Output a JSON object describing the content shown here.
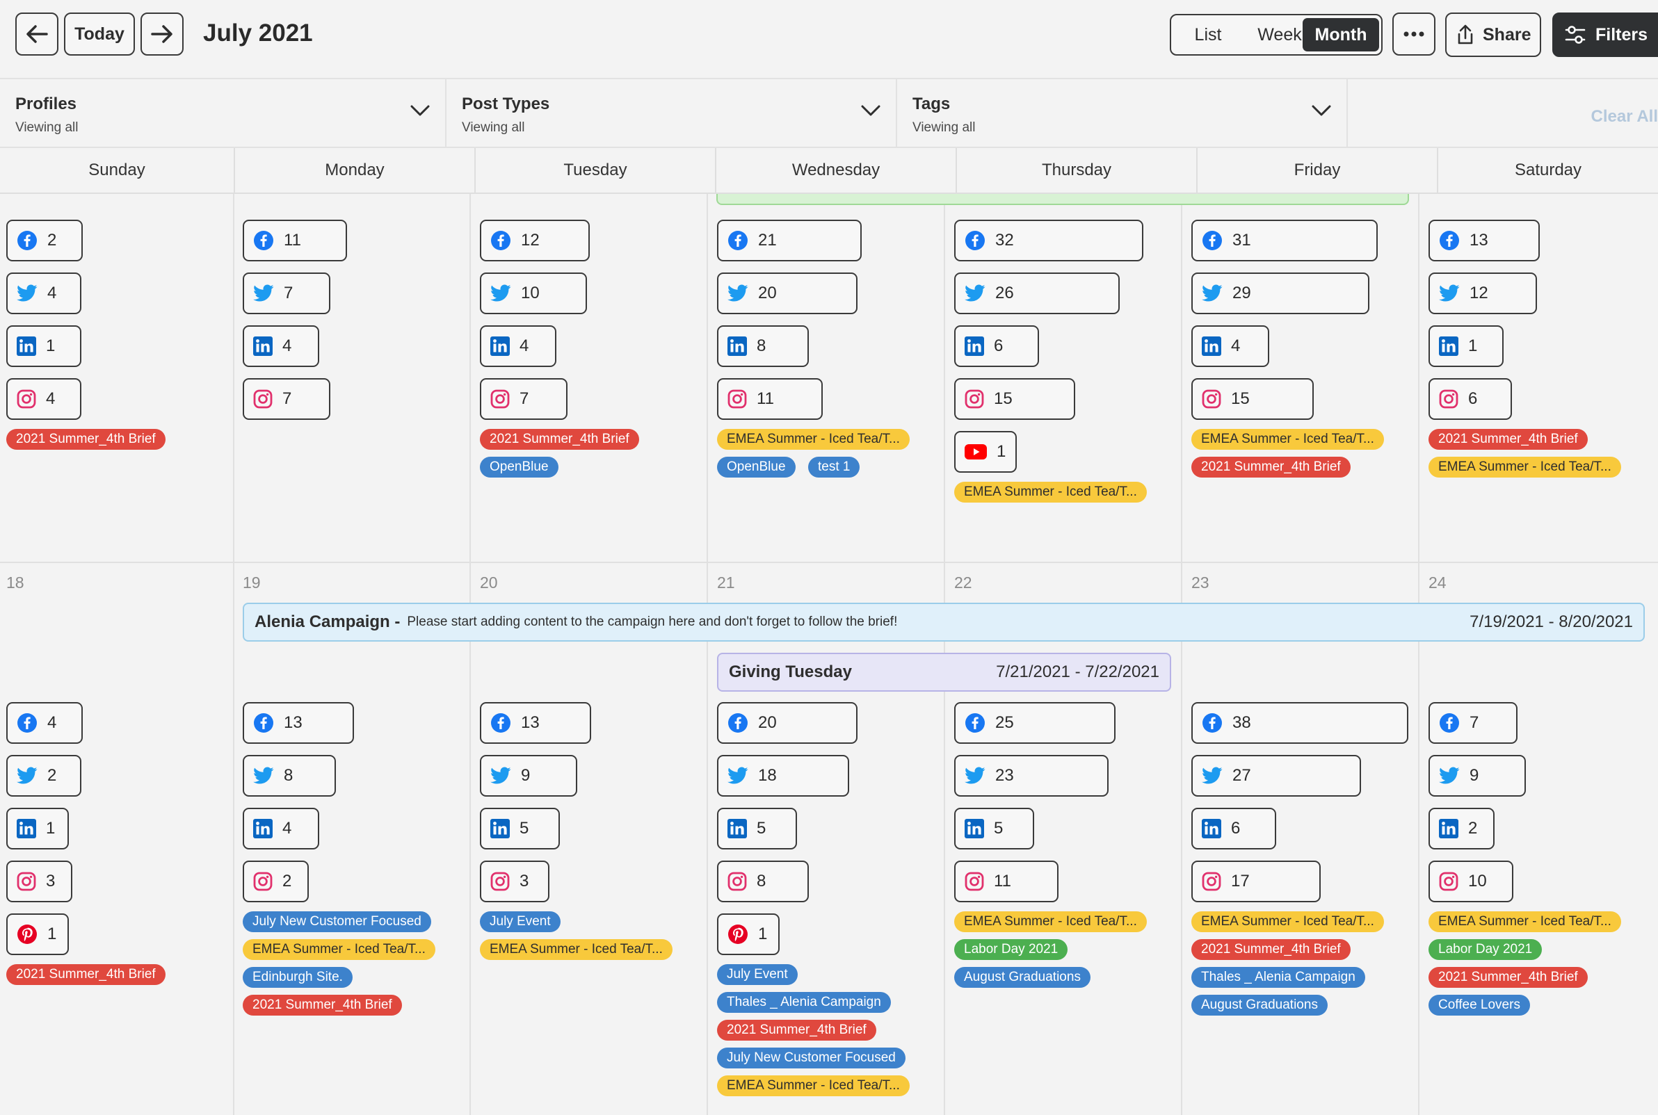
{
  "header": {
    "today_label": "Today",
    "month_title": "July 2021",
    "views": [
      "List",
      "Week",
      "Month"
    ],
    "active_view": "Month",
    "more_label": "•••",
    "share_label": "Share",
    "filters_label": "Filters"
  },
  "filters": {
    "profiles": {
      "label": "Profiles",
      "value": "Viewing all"
    },
    "post_types": {
      "label": "Post Types",
      "value": "Viewing all"
    },
    "tags": {
      "label": "Tags",
      "value": "Viewing all"
    },
    "clear_all": "Clear All"
  },
  "days": [
    "Sunday",
    "Monday",
    "Tuesday",
    "Wednesday",
    "Thursday",
    "Friday",
    "Saturday"
  ],
  "week2": {
    "dates": [
      "18",
      "19",
      "20",
      "21",
      "22",
      "23",
      "24"
    ]
  },
  "campaigns": {
    "alenia": {
      "name": "Alenia Campaign -",
      "desc": "Please start adding content to the campaign here and don't forget to follow the brief!",
      "dates": "7/19/2021 - 8/20/2021"
    },
    "giving": {
      "name": "Giving Tuesday",
      "dates": "7/21/2021 - 7/22/2021"
    }
  },
  "colors": {
    "facebook": "#1877f2",
    "twitter": "#1d9bf0",
    "linkedin": "#0a66c2",
    "instagram": "#e1306c",
    "youtube": "#ff0000",
    "pinterest": "#e60023",
    "tag_red": "#e0483e",
    "tag_yellow": "#f8c93c",
    "tag_blue": "#3d82cc",
    "tag_green": "#4caf50"
  },
  "week1": [
    {
      "posts": [
        [
          "facebook",
          "2"
        ],
        [
          "twitter",
          "4"
        ],
        [
          "linkedin",
          "1"
        ],
        [
          "instagram",
          "4"
        ]
      ],
      "tags": [
        [
          "red",
          "2021 Summer_4th Brief"
        ]
      ]
    },
    {
      "posts": [
        [
          "facebook",
          "11"
        ],
        [
          "twitter",
          "7"
        ],
        [
          "linkedin",
          "4"
        ],
        [
          "instagram",
          "7"
        ]
      ],
      "tags": []
    },
    {
      "posts": [
        [
          "facebook",
          "12"
        ],
        [
          "twitter",
          "10"
        ],
        [
          "linkedin",
          "4"
        ],
        [
          "instagram",
          "7"
        ]
      ],
      "tags": [
        [
          "red",
          "2021 Summer_4th Brief"
        ],
        [
          "blue",
          "OpenBlue"
        ]
      ]
    },
    {
      "posts": [
        [
          "facebook",
          "21"
        ],
        [
          "twitter",
          "20"
        ],
        [
          "linkedin",
          "8"
        ],
        [
          "instagram",
          "11"
        ]
      ],
      "tags": [
        [
          "yellow",
          "EMEA Summer - Iced Tea/T..."
        ],
        [
          "blue",
          "OpenBlue"
        ],
        [
          "blue",
          "test 1"
        ]
      ]
    },
    {
      "posts": [
        [
          "facebook",
          "32"
        ],
        [
          "twitter",
          "26"
        ],
        [
          "linkedin",
          "6"
        ],
        [
          "instagram",
          "15"
        ],
        [
          "youtube",
          "1"
        ]
      ],
      "tags": [
        [
          "yellow",
          "EMEA Summer - Iced Tea/T..."
        ]
      ]
    },
    {
      "posts": [
        [
          "facebook",
          "31"
        ],
        [
          "twitter",
          "29"
        ],
        [
          "linkedin",
          "4"
        ],
        [
          "instagram",
          "15"
        ]
      ],
      "tags": [
        [
          "yellow",
          "EMEA Summer - Iced Tea/T..."
        ],
        [
          "red",
          "2021 Summer_4th Brief"
        ]
      ]
    },
    {
      "posts": [
        [
          "facebook",
          "13"
        ],
        [
          "twitter",
          "12"
        ],
        [
          "linkedin",
          "1"
        ],
        [
          "instagram",
          "6"
        ]
      ],
      "tags": [
        [
          "red",
          "2021 Summer_4th Brief"
        ],
        [
          "yellow",
          "EMEA Summer - Iced Tea/T..."
        ]
      ]
    }
  ],
  "week2_cells": [
    {
      "posts": [
        [
          "facebook",
          "4"
        ],
        [
          "twitter",
          "2"
        ],
        [
          "linkedin",
          "1"
        ],
        [
          "instagram",
          "3"
        ],
        [
          "pinterest",
          "1"
        ]
      ],
      "tags": [
        [
          "red",
          "2021 Summer_4th Brief"
        ]
      ]
    },
    {
      "posts": [
        [
          "facebook",
          "13"
        ],
        [
          "twitter",
          "8"
        ],
        [
          "linkedin",
          "4"
        ],
        [
          "instagram",
          "2"
        ]
      ],
      "tags": [
        [
          "blue",
          "July New Customer Focused"
        ],
        [
          "yellow",
          "EMEA Summer - Iced Tea/T..."
        ],
        [
          "blue",
          "Edinburgh Site."
        ],
        [
          "red",
          "2021 Summer_4th Brief"
        ]
      ]
    },
    {
      "posts": [
        [
          "facebook",
          "13"
        ],
        [
          "twitter",
          "9"
        ],
        [
          "linkedin",
          "5"
        ],
        [
          "instagram",
          "3"
        ]
      ],
      "tags": [
        [
          "blue",
          "July Event"
        ],
        [
          "yellow",
          "EMEA Summer - Iced Tea/T..."
        ]
      ]
    },
    {
      "posts": [
        [
          "facebook",
          "20"
        ],
        [
          "twitter",
          "18"
        ],
        [
          "linkedin",
          "5"
        ],
        [
          "instagram",
          "8"
        ],
        [
          "pinterest",
          "1"
        ]
      ],
      "tags": [
        [
          "blue",
          "July Event"
        ],
        [
          "blue",
          "Thales _ Alenia Campaign"
        ],
        [
          "red",
          "2021 Summer_4th Brief"
        ],
        [
          "blue",
          "July New Customer Focused"
        ],
        [
          "yellow",
          "EMEA Summer - Iced Tea/T..."
        ]
      ]
    },
    {
      "posts": [
        [
          "facebook",
          "25"
        ],
        [
          "twitter",
          "23"
        ],
        [
          "linkedin",
          "5"
        ],
        [
          "instagram",
          "11"
        ]
      ],
      "tags": [
        [
          "yellow",
          "EMEA Summer - Iced Tea/T..."
        ],
        [
          "green",
          "Labor Day 2021"
        ],
        [
          "blue",
          "August Graduations"
        ]
      ]
    },
    {
      "posts": [
        [
          "facebook",
          "38"
        ],
        [
          "twitter",
          "27"
        ],
        [
          "linkedin",
          "6"
        ],
        [
          "instagram",
          "17"
        ]
      ],
      "tags": [
        [
          "yellow",
          "EMEA Summer - Iced Tea/T..."
        ],
        [
          "red",
          "2021 Summer_4th Brief"
        ],
        [
          "blue",
          "Thales _ Alenia Campaign"
        ],
        [
          "blue",
          "August Graduations"
        ]
      ]
    },
    {
      "posts": [
        [
          "facebook",
          "7"
        ],
        [
          "twitter",
          "9"
        ],
        [
          "linkedin",
          "2"
        ],
        [
          "instagram",
          "10"
        ]
      ],
      "tags": [
        [
          "yellow",
          "EMEA Summer - Iced Tea/T..."
        ],
        [
          "green",
          "Labor Day 2021"
        ],
        [
          "red",
          "2021 Summer_4th Brief"
        ],
        [
          "blue",
          "Coffee Lovers"
        ]
      ]
    }
  ]
}
